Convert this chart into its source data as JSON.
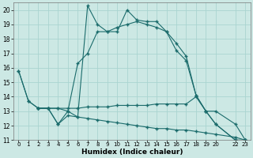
{
  "xlabel": "Humidex (Indice chaleur)",
  "bg_color": "#cce8e4",
  "grid_color": "#aad4d0",
  "line_color": "#1a6b6b",
  "xlim": [
    -0.5,
    23.5
  ],
  "ylim": [
    11,
    20.5
  ],
  "yticks": [
    11,
    12,
    13,
    14,
    15,
    16,
    17,
    18,
    19,
    20
  ],
  "xtick_positions": [
    0,
    1,
    2,
    3,
    4,
    5,
    6,
    7,
    8,
    9,
    10,
    11,
    12,
    13,
    14,
    15,
    16,
    17,
    18,
    19,
    20,
    22,
    23
  ],
  "xtick_labels": [
    "0",
    "1",
    "2",
    "3",
    "4",
    "5",
    "6",
    "7",
    "8",
    "9",
    "10",
    "11",
    "12",
    "13",
    "14",
    "15",
    "16",
    "17",
    "18",
    "19",
    "20",
    "22",
    "23"
  ],
  "line1_x": [
    0,
    1,
    2,
    3,
    4,
    5,
    6,
    7,
    8,
    9,
    10,
    11,
    12,
    13,
    14,
    15,
    16,
    17,
    18,
    19,
    20,
    22,
    23
  ],
  "line1_y": [
    15.8,
    13.7,
    13.2,
    13.2,
    12.1,
    12.7,
    12.6,
    20.3,
    19.0,
    18.5,
    18.5,
    20.0,
    19.3,
    19.2,
    19.2,
    18.5,
    17.2,
    16.5,
    14.1,
    13.0,
    12.1,
    11.0,
    11.0
  ],
  "line2_x": [
    0,
    1,
    2,
    3,
    4,
    5,
    6,
    7,
    8,
    9,
    10,
    11,
    12,
    13,
    14,
    15,
    16,
    17,
    18,
    19,
    20,
    22,
    23
  ],
  "line2_y": [
    15.8,
    13.7,
    13.2,
    13.2,
    12.1,
    13.0,
    16.3,
    17.0,
    18.5,
    18.5,
    18.8,
    19.0,
    19.2,
    19.0,
    18.8,
    18.5,
    17.7,
    16.8,
    14.1,
    13.0,
    12.1,
    11.0,
    11.0
  ],
  "line3_x": [
    2,
    3,
    4,
    5,
    6,
    7,
    8,
    9,
    10,
    11,
    12,
    13,
    14,
    15,
    16,
    17,
    18,
    19,
    20,
    22,
    23
  ],
  "line3_y": [
    13.2,
    13.2,
    13.2,
    13.2,
    13.2,
    13.3,
    13.3,
    13.3,
    13.4,
    13.4,
    13.4,
    13.4,
    13.5,
    13.5,
    13.5,
    13.5,
    14.0,
    13.0,
    13.0,
    12.1,
    11.0
  ],
  "line4_x": [
    2,
    3,
    4,
    5,
    6,
    7,
    8,
    9,
    10,
    11,
    12,
    13,
    14,
    15,
    16,
    17,
    18,
    19,
    20,
    22,
    23
  ],
  "line4_y": [
    13.2,
    13.2,
    13.2,
    13.0,
    12.6,
    12.5,
    12.4,
    12.3,
    12.2,
    12.1,
    12.0,
    11.9,
    11.8,
    11.8,
    11.7,
    11.7,
    11.6,
    11.5,
    11.4,
    11.2,
    11.0
  ]
}
